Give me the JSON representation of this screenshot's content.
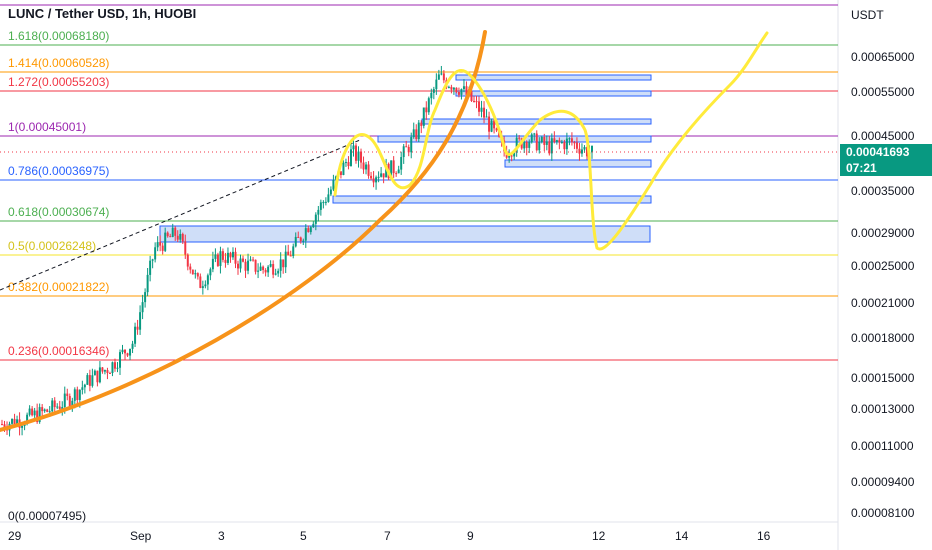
{
  "chart": {
    "title": "LUNC / Tether USD, 1h, HUOBI",
    "price_unit": "USDT",
    "last_price": "0.00041693",
    "countdown": "07:21",
    "up_color": "#089981",
    "down_color": "#f23645"
  },
  "chart_data": {
    "type": "candlestick",
    "title": "LUNC / Tether USD, 1h, HUOBI",
    "yscale": "log",
    "y_ticks": [
      "0.00065000",
      "0.00055000",
      "0.00045000",
      "0.00035000",
      "0.00029000",
      "0.00025000",
      "0.00021000",
      "0.00018000",
      "0.00015000",
      "0.00013000",
      "0.00011000",
      "0.00009400",
      "0.00008100"
    ],
    "x_ticks": [
      "29",
      "Sep",
      "3",
      "5",
      "7",
      "9",
      "12",
      "14",
      "16"
    ],
    "fib_levels": [
      {
        "label": "1.618(0.00068180)",
        "value": 0.0006818,
        "color": "#4caf50"
      },
      {
        "label": "1.414(0.00060528)",
        "value": 0.00060528,
        "color": "#ff9800"
      },
      {
        "label": "1.272(0.00055203)",
        "value": 0.00055203,
        "color": "#f23645"
      },
      {
        "label": "1(0.00045001)",
        "value": 0.00045001,
        "color": "#9c27b0"
      },
      {
        "label": "0.786(0.00036975)",
        "value": 0.00036975,
        "color": "#2962ff"
      },
      {
        "label": "0.618(0.00030674)",
        "value": 0.00030674,
        "color": "#4caf50"
      },
      {
        "label": "0.5(0.00026248)",
        "value": 0.00026248,
        "color": "#f5e52b"
      },
      {
        "label": "0.382(0.00021822)",
        "value": 0.00021822,
        "color": "#ff9800"
      },
      {
        "label": "0.236(0.00016346)",
        "value": 0.00016346,
        "color": "#f23645"
      },
      {
        "label": "0(0.00007495)",
        "value": 7.495e-05,
        "color": "#787b86"
      }
    ],
    "close_path": [
      [
        "29",
        0.000121
      ],
      [
        "29.5",
        0.000124
      ],
      [
        "30",
        0.000128
      ],
      [
        "30.5",
        0.000135
      ],
      [
        "31",
        0.000148
      ],
      [
        "Sep 1",
        0.000158
      ],
      [
        "1.5",
        0.000176
      ],
      [
        "2",
        0.00027
      ],
      [
        "2.5",
        0.00029
      ],
      [
        "3",
        0.000228
      ],
      [
        "3.5",
        0.000262
      ],
      [
        "4",
        0.000252
      ],
      [
        "4.5",
        0.000245
      ],
      [
        "5",
        0.000256
      ],
      [
        "5.5",
        0.0003
      ],
      [
        "6",
        0.00035
      ],
      [
        "6.5",
        0.00042
      ],
      [
        "7",
        0.00038
      ],
      [
        "7.5",
        0.00039
      ],
      [
        "8",
        0.00046
      ],
      [
        "8.5",
        0.00059
      ],
      [
        "9",
        0.00056
      ],
      [
        "9.5",
        0.0005
      ],
      [
        "10",
        0.00042
      ],
      [
        "10.5",
        0.000445
      ],
      [
        "11",
        0.00043
      ],
      [
        "11.5",
        0.00044
      ],
      [
        "12",
        0.00041693
      ]
    ]
  }
}
